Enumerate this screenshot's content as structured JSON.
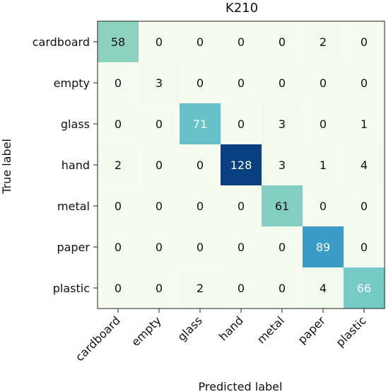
{
  "chart_data": {
    "type": "heatmap",
    "title": "K210",
    "xlabel": "Predicted label",
    "ylabel": "True label",
    "x_categories": [
      "cardboard",
      "empty",
      "glass",
      "hand",
      "metal",
      "paper",
      "plastic"
    ],
    "y_categories": [
      "cardboard",
      "empty",
      "glass",
      "hand",
      "metal",
      "paper",
      "plastic"
    ],
    "values": [
      [
        58,
        0,
        0,
        0,
        0,
        2,
        0
      ],
      [
        0,
        3,
        0,
        0,
        0,
        0,
        0
      ],
      [
        0,
        0,
        71,
        0,
        3,
        0,
        1
      ],
      [
        2,
        0,
        0,
        128,
        3,
        1,
        4
      ],
      [
        0,
        0,
        0,
        0,
        61,
        0,
        0
      ],
      [
        0,
        0,
        0,
        0,
        0,
        89,
        0
      ],
      [
        0,
        0,
        2,
        0,
        0,
        4,
        66
      ]
    ],
    "colormap": "GnBu",
    "value_range": [
      0,
      128
    ],
    "colors": {
      "low": "#f7fcf0",
      "mid": "#7bccc4",
      "high": "#084081"
    }
  }
}
